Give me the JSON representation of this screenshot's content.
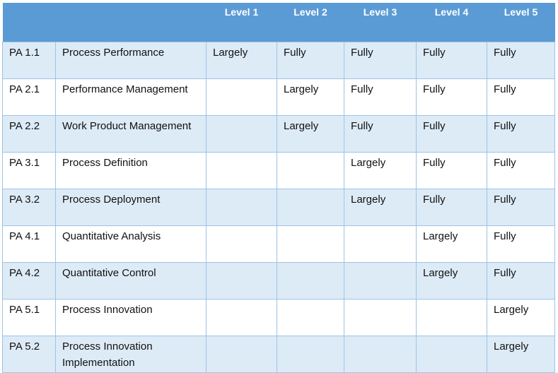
{
  "header": [
    "",
    "",
    "Level 1",
    "Level 2",
    "Level 3",
    "Level 4",
    "Level 5"
  ],
  "rows": [
    {
      "id": "PA 1.1",
      "name": "Process Performance",
      "levels": [
        "Largely",
        "Fully",
        "Fully",
        "Fully",
        "Fully"
      ]
    },
    {
      "id": "PA 2.1",
      "name": "Performance Management",
      "levels": [
        "",
        "Largely",
        "Fully",
        "Fully",
        "Fully"
      ]
    },
    {
      "id": "PA 2.2",
      "name": "Work Product Management",
      "levels": [
        "",
        "Largely",
        "Fully",
        "Fully",
        "Fully"
      ]
    },
    {
      "id": "PA 3.1",
      "name": "Process Definition",
      "levels": [
        "",
        "",
        "Largely",
        "Fully",
        "Fully"
      ]
    },
    {
      "id": "PA 3.2",
      "name": "Process Deployment",
      "levels": [
        "",
        "",
        "Largely",
        "Fully",
        "Fully"
      ]
    },
    {
      "id": "PA 4.1",
      "name": "Quantitative Analysis",
      "levels": [
        "",
        "",
        "",
        "Largely",
        "Fully"
      ]
    },
    {
      "id": "PA 4.2",
      "name": "Quantitative Control",
      "levels": [
        "",
        "",
        "",
        "Largely",
        "Fully"
      ]
    },
    {
      "id": "PA 5.1",
      "name": "Process Innovation",
      "levels": [
        "",
        "",
        "",
        "",
        "Largely"
      ]
    },
    {
      "id": "PA 5.2",
      "name": "Process Innovation Implementation",
      "levels": [
        "",
        "",
        "",
        "",
        "Largely"
      ]
    }
  ]
}
